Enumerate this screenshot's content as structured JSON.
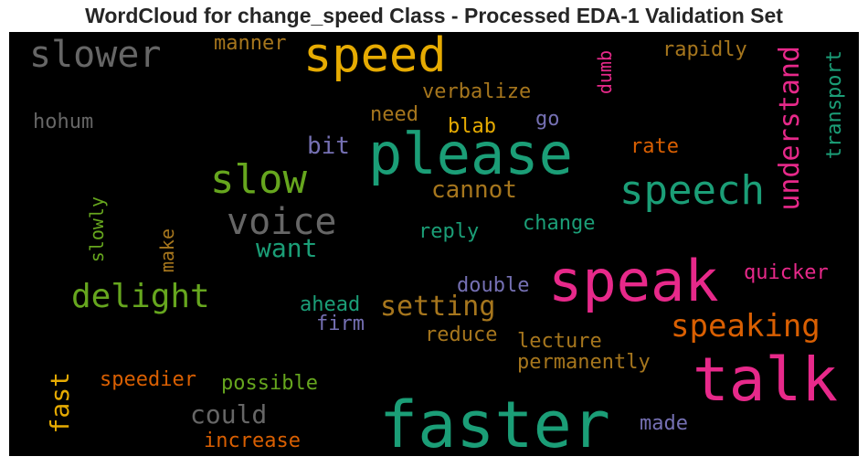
{
  "chart_data": {
    "type": "wordcloud",
    "title": "WordCloud for change_speed Class - Processed EDA-1 Validation Set",
    "background": "#000000",
    "palette": [
      "#1b9e77",
      "#d95f02",
      "#7570b3",
      "#e7298a",
      "#66a61e",
      "#e6ab02",
      "#a6761d",
      "#666666"
    ],
    "words": [
      {
        "text": "faster",
        "color": "#1b9e77",
        "vertical": false
      },
      {
        "text": "please",
        "color": "#1b9e77",
        "vertical": false
      },
      {
        "text": "speak",
        "color": "#e7298a",
        "vertical": false
      },
      {
        "text": "talk",
        "color": "#e7298a",
        "vertical": false
      },
      {
        "text": "speed",
        "color": "#e6ab02",
        "vertical": false
      },
      {
        "text": "slow",
        "color": "#66a61e",
        "vertical": false
      },
      {
        "text": "speech",
        "color": "#1b9e77",
        "vertical": false
      },
      {
        "text": "voice",
        "color": "#666666",
        "vertical": false
      },
      {
        "text": "slower",
        "color": "#666666",
        "vertical": false
      },
      {
        "text": "delight",
        "color": "#66a61e",
        "vertical": false
      },
      {
        "text": "speaking",
        "color": "#d95f02",
        "vertical": false
      },
      {
        "text": "understand",
        "color": "#e7298a",
        "vertical": true
      },
      {
        "text": "setting",
        "color": "#a6761d",
        "vertical": false
      },
      {
        "text": "want",
        "color": "#1b9e77",
        "vertical": false
      },
      {
        "text": "could",
        "color": "#666666",
        "vertical": false
      },
      {
        "text": "fast",
        "color": "#e6ab02",
        "vertical": true
      },
      {
        "text": "cannot",
        "color": "#a6761d",
        "vertical": false
      },
      {
        "text": "bit",
        "color": "#7570b3",
        "vertical": false
      },
      {
        "text": "transport",
        "color": "#1b9e77",
        "vertical": true
      },
      {
        "text": "manner",
        "color": "#a6761d",
        "vertical": false
      },
      {
        "text": "rapidly",
        "color": "#a6761d",
        "vertical": false
      },
      {
        "text": "dumb",
        "color": "#e7298a",
        "vertical": true
      },
      {
        "text": "verbalize",
        "color": "#a6761d",
        "vertical": false
      },
      {
        "text": "hohum",
        "color": "#666666",
        "vertical": false
      },
      {
        "text": "need",
        "color": "#a6761d",
        "vertical": false
      },
      {
        "text": "blab",
        "color": "#e6ab02",
        "vertical": false
      },
      {
        "text": "go",
        "color": "#7570b3",
        "vertical": false
      },
      {
        "text": "rate",
        "color": "#d95f02",
        "vertical": false
      },
      {
        "text": "slowly",
        "color": "#66a61e",
        "vertical": true
      },
      {
        "text": "make",
        "color": "#a6761d",
        "vertical": true
      },
      {
        "text": "change",
        "color": "#1b9e77",
        "vertical": false
      },
      {
        "text": "reply",
        "color": "#1b9e77",
        "vertical": false
      },
      {
        "text": "quicker",
        "color": "#e7298a",
        "vertical": false
      },
      {
        "text": "double",
        "color": "#7570b3",
        "vertical": false
      },
      {
        "text": "ahead",
        "color": "#1b9e77",
        "vertical": false
      },
      {
        "text": "firm",
        "color": "#7570b3",
        "vertical": false
      },
      {
        "text": "reduce",
        "color": "#a6761d",
        "vertical": false
      },
      {
        "text": "lecture",
        "color": "#a6761d",
        "vertical": false
      },
      {
        "text": "permanently",
        "color": "#a6761d",
        "vertical": false
      },
      {
        "text": "speedier",
        "color": "#d95f02",
        "vertical": false
      },
      {
        "text": "possible",
        "color": "#66a61e",
        "vertical": false
      },
      {
        "text": "made",
        "color": "#7570b3",
        "vertical": false
      },
      {
        "text": "increase",
        "color": "#d95f02",
        "vertical": false
      }
    ]
  }
}
